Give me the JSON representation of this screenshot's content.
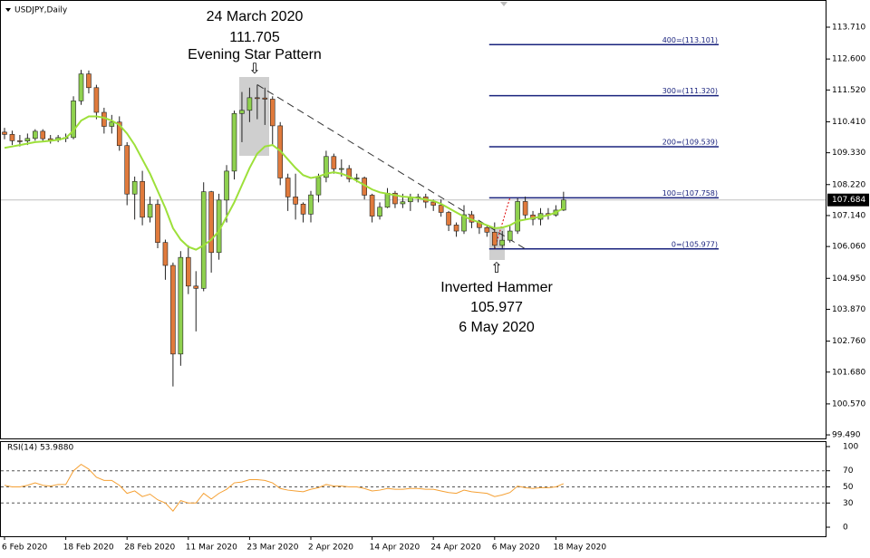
{
  "chart_data": {
    "type": "candlestick",
    "title": "USDJPY,Daily",
    "categories": [
      "6 Feb 2020",
      null,
      null,
      null,
      null,
      null,
      null,
      null,
      "18 Feb 2020",
      null,
      null,
      null,
      null,
      null,
      null,
      null,
      "28 Feb 2020",
      null,
      null,
      null,
      null,
      null,
      null,
      null,
      "11 Mar 2020",
      null,
      null,
      null,
      null,
      null,
      null,
      null,
      "23 Mar 2020",
      null,
      null,
      null,
      null,
      null,
      null,
      null,
      "2 Apr 2020",
      null,
      null,
      null,
      null,
      null,
      null,
      null,
      "14 Apr 2020",
      null,
      null,
      null,
      null,
      null,
      null,
      null,
      "24 Apr 2020",
      null,
      null,
      null,
      null,
      null,
      null,
      null,
      "6 May 2020",
      null,
      null,
      null,
      null,
      null,
      null,
      null,
      "18 May 2020",
      null
    ],
    "open": [
      110.05,
      109.97,
      109.75,
      109.74,
      109.83,
      110.08,
      109.82,
      109.77,
      109.86,
      109.86,
      111.14,
      112.08,
      111.6,
      110.74,
      110.25,
      110.4,
      109.58,
      107.89,
      108.33,
      107.08,
      107.53,
      106.2,
      105.4,
      102.31,
      105.68,
      104.68,
      104.6,
      107.97,
      105.85,
      107.68,
      108.69,
      110.7,
      110.81,
      111.25,
      111.24,
      111.2,
      110.27,
      108.45,
      107.79,
      107.54,
      107.19,
      107.86,
      108.47,
      109.2,
      108.77,
      108.78,
      108.42,
      108.45,
      107.85,
      107.12,
      107.43,
      107.92,
      107.55,
      107.62,
      107.76,
      107.79,
      107.61,
      107.5,
      107.25,
      106.81,
      106.6,
      107.17,
      106.91,
      106.72,
      106.56,
      106.1,
      106.28,
      106.6,
      107.63,
      107.16,
      107.01,
      107.21,
      107.16,
      107.33
    ],
    "high": [
      110.2,
      110.1,
      109.95,
      110.0,
      110.15,
      110.15,
      109.95,
      109.95,
      110.0,
      111.3,
      112.22,
      112.2,
      111.7,
      110.9,
      110.65,
      110.6,
      109.7,
      108.5,
      108.7,
      107.8,
      107.7,
      106.3,
      105.5,
      105.9,
      106.1,
      105.2,
      108.3,
      108.0,
      107.9,
      108.9,
      110.8,
      111.45,
      111.6,
      111.705,
      111.6,
      111.3,
      110.4,
      108.6,
      108.6,
      107.6,
      108.0,
      108.6,
      109.4,
      109.3,
      109.1,
      108.9,
      108.6,
      108.5,
      107.9,
      107.6,
      108.1,
      108.0,
      107.9,
      107.9,
      107.9,
      107.9,
      107.7,
      107.7,
      107.3,
      106.9,
      107.5,
      107.3,
      106.95,
      106.8,
      106.9,
      106.6,
      106.8,
      107.75,
      107.8,
      107.3,
      107.4,
      107.4,
      107.5,
      107.97
    ],
    "low": [
      109.8,
      109.6,
      109.55,
      109.6,
      109.75,
      109.7,
      109.65,
      109.7,
      109.7,
      109.8,
      111.0,
      111.4,
      110.5,
      110.0,
      110.0,
      109.4,
      107.5,
      107.0,
      106.8,
      106.9,
      106.0,
      104.9,
      101.18,
      101.9,
      104.4,
      103.1,
      104.5,
      105.15,
      105.6,
      106.9,
      108.4,
      109.7,
      110.4,
      110.5,
      110.3,
      109.6,
      108.2,
      107.3,
      107.0,
      106.9,
      106.9,
      107.6,
      108.3,
      108.6,
      108.5,
      108.3,
      108.3,
      107.7,
      106.9,
      107.0,
      107.4,
      107.4,
      107.4,
      107.3,
      107.6,
      107.4,
      107.3,
      107.1,
      106.6,
      106.4,
      106.5,
      106.7,
      106.5,
      106.4,
      105.977,
      106.0,
      106.2,
      106.5,
      107.0,
      106.8,
      106.8,
      107.0,
      107.1,
      107.3
    ],
    "close": [
      109.97,
      109.75,
      109.74,
      109.83,
      110.08,
      109.82,
      109.77,
      109.86,
      109.86,
      111.14,
      112.08,
      111.6,
      110.74,
      110.25,
      110.4,
      109.58,
      107.89,
      108.33,
      107.08,
      107.53,
      106.2,
      105.4,
      102.31,
      105.68,
      104.68,
      104.6,
      107.97,
      105.85,
      107.68,
      108.69,
      110.7,
      110.81,
      111.25,
      111.24,
      111.2,
      110.27,
      108.45,
      107.79,
      107.54,
      107.19,
      107.86,
      108.47,
      109.2,
      108.77,
      108.78,
      108.42,
      108.45,
      107.85,
      107.12,
      107.43,
      107.92,
      107.55,
      107.62,
      107.76,
      107.79,
      107.61,
      107.5,
      107.25,
      106.81,
      106.6,
      107.17,
      106.91,
      106.72,
      106.56,
      106.1,
      106.28,
      106.6,
      107.63,
      107.16,
      107.01,
      107.21,
      107.16,
      107.33,
      107.684
    ],
    "ma": [
      109.5,
      109.55,
      109.6,
      109.65,
      109.7,
      109.72,
      109.75,
      109.78,
      109.85,
      110.1,
      110.45,
      110.6,
      110.6,
      110.55,
      110.45,
      110.3,
      110.0,
      109.6,
      109.1,
      108.6,
      108.0,
      107.4,
      106.7,
      106.3,
      106.05,
      105.95,
      106.1,
      106.3,
      106.6,
      107.1,
      107.6,
      108.2,
      108.8,
      109.3,
      109.55,
      109.6,
      109.4,
      109.1,
      108.8,
      108.55,
      108.45,
      108.5,
      108.6,
      108.65,
      108.6,
      108.5,
      108.35,
      108.2,
      108.05,
      107.95,
      107.9,
      107.85,
      107.8,
      107.78,
      107.75,
      107.7,
      107.65,
      107.55,
      107.4,
      107.25,
      107.1,
      107.0,
      106.9,
      106.8,
      106.7,
      106.72,
      106.8,
      106.95,
      107.0,
      107.05,
      107.1,
      107.15,
      107.25,
      107.4
    ],
    "up_color": "#8fd14f",
    "down_color": "#e07a3c",
    "ma_color": "#9de03a",
    "ylim": [
      99.366,
      114.595
    ],
    "yticks": [
      {
        "value": 113.71,
        "label": "113.710"
      },
      {
        "value": 112.6,
        "label": "112.600"
      },
      {
        "value": 111.52,
        "label": "111.520"
      },
      {
        "value": 110.41,
        "label": "110.410"
      },
      {
        "value": 109.33,
        "label": "109.330"
      },
      {
        "value": 108.22,
        "label": "108.220"
      },
      {
        "value": 107.14,
        "label": "107.140"
      },
      {
        "value": 106.06,
        "label": "106.060"
      },
      {
        "value": 104.95,
        "label": "104.950"
      },
      {
        "value": 103.87,
        "label": "103.870"
      },
      {
        "value": 102.76,
        "label": "102.760"
      },
      {
        "value": 101.68,
        "label": "101.680"
      },
      {
        "value": 100.57,
        "label": "100.570"
      },
      {
        "value": 99.49,
        "label": "99.490"
      }
    ],
    "current_price": {
      "value": 107.684,
      "label": "107.684"
    },
    "fib_color": "#1a237e",
    "fib_levels": [
      {
        "value": 105.977,
        "label": "0=(105.977)"
      },
      {
        "value": 107.758,
        "label": "100=(107.758)"
      },
      {
        "value": 109.539,
        "label": "200=(109.539)"
      },
      {
        "value": 111.32,
        "label": "300=(111.320)"
      },
      {
        "value": 113.101,
        "label": "400=(113.101)"
      }
    ],
    "annotations": {
      "top": [
        "24 March 2020",
        "111.705",
        "Evening Star Pattern"
      ],
      "bottom": [
        "Inverted Hammer",
        "105.977",
        "6 May 2020"
      ]
    },
    "rsi_label": "RSI(14) 53.9880",
    "rsi_color": "#f5a033",
    "rsi": [
      52,
      50,
      50,
      52,
      55,
      52,
      51,
      53,
      53,
      70,
      78,
      72,
      62,
      58,
      58,
      52,
      42,
      45,
      38,
      41,
      34,
      30,
      20,
      33,
      30,
      30,
      42,
      35,
      42,
      47,
      55,
      56,
      59,
      59,
      58,
      55,
      48,
      46,
      45,
      44,
      47,
      49,
      53,
      51,
      51,
      50,
      50,
      48,
      45,
      46,
      48,
      47,
      47,
      48,
      48,
      47,
      47,
      45,
      43,
      42,
      46,
      44,
      43,
      42,
      38,
      40,
      43,
      51,
      49,
      48,
      49,
      49,
      50,
      53.988
    ],
    "rsi_ylim": [
      0,
      100
    ],
    "rsi_yticks": [
      100,
      70,
      50,
      30,
      0
    ]
  }
}
